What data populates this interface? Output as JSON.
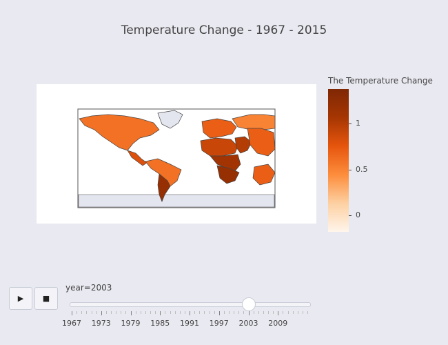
{
  "title": "Temperature Change - 1967 - 2015",
  "colorbar": {
    "title": "The Temperature Change",
    "ticks": [
      "1",
      "0.5",
      "0"
    ],
    "tick_values": [
      1,
      0.5,
      0
    ],
    "range": [
      -0.18,
      1.38
    ],
    "colors": [
      "#fff5eb",
      "#fdd0a2",
      "#fd8d3c",
      "#e6550d",
      "#a63603",
      "#7f2704"
    ]
  },
  "controls": {
    "play_icon": "play-icon",
    "stop_icon": "stop-icon",
    "play_glyph": "▶",
    "stop_glyph": "■"
  },
  "slider": {
    "label": "year=2003",
    "current_year": 2003,
    "years_range": [
      1967,
      2015
    ],
    "tick_labels": [
      "1967",
      "1973",
      "1979",
      "1985",
      "1991",
      "1997",
      "2003",
      "2009"
    ]
  },
  "chart_data": {
    "type": "choropleth",
    "title": "Temperature Change - 1967 - 2015",
    "colorscale": "Oranges",
    "colorbar_title": "The Temperature Change",
    "frame": "year=2003",
    "regions": [
      {
        "name": "North America",
        "value": 0.6
      },
      {
        "name": "Greenland",
        "value": null
      },
      {
        "name": "Central America",
        "value": 0.8
      },
      {
        "name": "South America",
        "value": 0.6
      },
      {
        "name": "Southern South America",
        "value": 1.2
      },
      {
        "name": "Europe",
        "value": 0.7
      },
      {
        "name": "North Africa",
        "value": 0.9
      },
      {
        "name": "Central Africa",
        "value": 1.1
      },
      {
        "name": "Southern Africa",
        "value": 1.2
      },
      {
        "name": "Russia",
        "value": 0.5
      },
      {
        "name": "Middle East",
        "value": 1.0
      },
      {
        "name": "Asia",
        "value": 0.7
      },
      {
        "name": "Australia",
        "value": 0.7
      }
    ]
  }
}
